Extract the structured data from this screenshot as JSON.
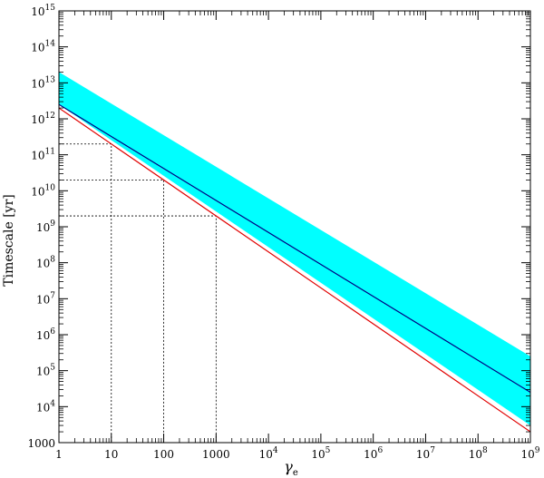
{
  "chart_data": {
    "type": "area",
    "title": "",
    "xlabel": "γ",
    "xlabel_subscript": "e",
    "ylabel": "Timescale [yr]",
    "xscale": "log",
    "yscale": "log",
    "xlim": [
      1,
      1000000000
    ],
    "ylim": [
      1000,
      1000000000000000
    ],
    "grid": false,
    "x_ticks": [
      {
        "value": 1,
        "label": "1"
      },
      {
        "value": 10,
        "label": "10"
      },
      {
        "value": 100,
        "label": "100"
      },
      {
        "value": 1000,
        "label": "1000"
      },
      {
        "value": 10000,
        "base": "10",
        "exp": "4"
      },
      {
        "value": 100000,
        "base": "10",
        "exp": "5"
      },
      {
        "value": 1000000,
        "base": "10",
        "exp": "6"
      },
      {
        "value": 10000000,
        "base": "10",
        "exp": "7"
      },
      {
        "value": 100000000,
        "base": "10",
        "exp": "8"
      },
      {
        "value": 1000000000,
        "base": "10",
        "exp": "9"
      }
    ],
    "y_ticks": [
      {
        "value": 1000,
        "label": "1000"
      },
      {
        "value": 10000,
        "base": "10",
        "exp": "4"
      },
      {
        "value": 100000,
        "base": "10",
        "exp": "5"
      },
      {
        "value": 1000000,
        "base": "10",
        "exp": "6"
      },
      {
        "value": 10000000,
        "base": "10",
        "exp": "7"
      },
      {
        "value": 100000000,
        "base": "10",
        "exp": "8"
      },
      {
        "value": 1000000000,
        "base": "10",
        "exp": "9"
      },
      {
        "value": 10000000000,
        "base": "10",
        "exp": "10"
      },
      {
        "value": 100000000000,
        "base": "10",
        "exp": "11"
      },
      {
        "value": 1000000000000,
        "base": "10",
        "exp": "12"
      },
      {
        "value": 10000000000000,
        "base": "10",
        "exp": "13"
      },
      {
        "value": 100000000000000,
        "base": "10",
        "exp": "14"
      },
      {
        "value": 1000000000000000,
        "base": "10",
        "exp": "15"
      }
    ],
    "band": {
      "color": "#00ffff",
      "x": [
        1,
        1000000000
      ],
      "upper": [
        20000000000000,
        250000
      ],
      "lower": [
        2500000000000,
        3000
      ]
    },
    "series": [
      {
        "color": "#000080",
        "x": [
          1,
          1000000000
        ],
        "y": [
          2500000000000,
          25000
        ]
      },
      {
        "color": "#e00000",
        "x": [
          1,
          1000000000
        ],
        "y": [
          2000000000000,
          2000
        ]
      }
    ],
    "reference_lines": [
      {
        "x": 10,
        "y": 200000000000
      },
      {
        "x": 100,
        "y": 20000000000
      },
      {
        "x": 1000,
        "y": 2000000000
      }
    ],
    "colors": {
      "band": "#00ffff",
      "center_line": "#000080",
      "red_line": "#e00000",
      "axes": "#000000"
    }
  }
}
